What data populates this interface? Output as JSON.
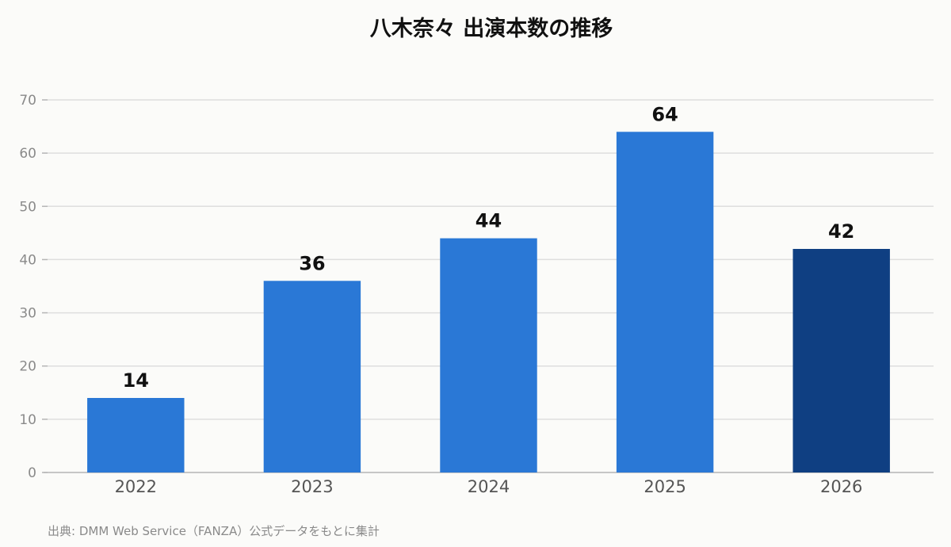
{
  "chart_data": {
    "type": "bar",
    "title": "八木奈々 出演本数の推移",
    "categories": [
      "2022",
      "2023",
      "2024",
      "2025",
      "2026"
    ],
    "values": [
      14,
      36,
      44,
      64,
      42
    ],
    "ylim": [
      0,
      70
    ],
    "yticks": [
      0,
      10,
      20,
      30,
      40,
      50,
      60,
      70
    ],
    "xlabel": "",
    "ylabel": "",
    "grid": true,
    "bar_colors": [
      "#2a78d6",
      "#2a78d6",
      "#2a78d6",
      "#2a78d6",
      "#0f3f82"
    ],
    "grid_color": "#dedede",
    "axis_color": "#b5b5b5"
  },
  "source": "出典: DMM Web Service（FANZA）公式データをもとに集計"
}
